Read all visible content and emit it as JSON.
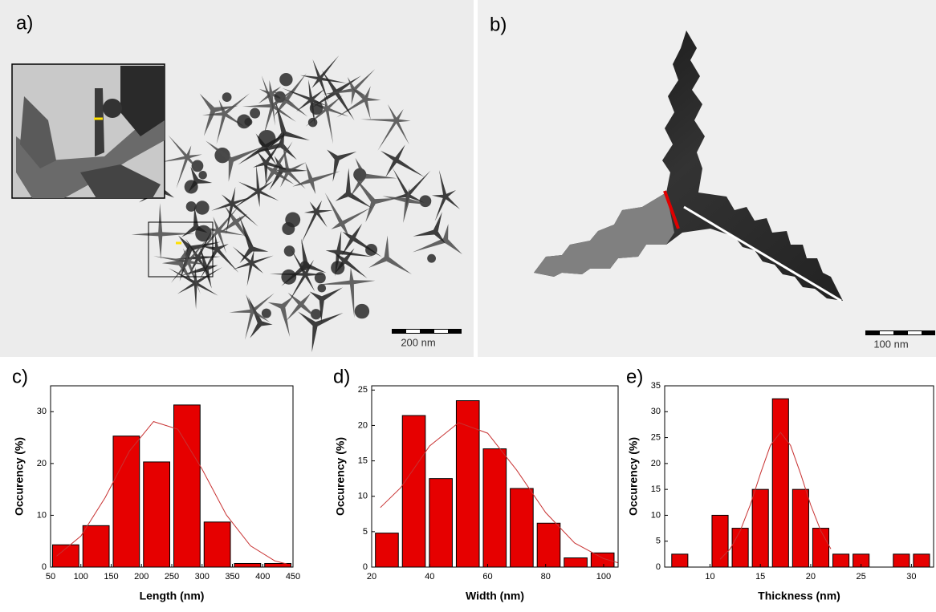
{
  "panels": [
    {
      "label": "a)",
      "scale_bar": "200 nm"
    },
    {
      "label": "b)",
      "scale_bar": "100 nm"
    }
  ],
  "chart_data": [
    {
      "type": "histogram",
      "panel_label": "c)",
      "xlabel": "Length (nm)",
      "ylabel": "Occurency (%)",
      "color": "#e60000",
      "bins": [
        50,
        100,
        150,
        200,
        250,
        300,
        350,
        400,
        450
      ],
      "values": [
        4.3,
        8,
        25.3,
        20.3,
        31.3,
        8.7,
        0.7,
        0.7
      ],
      "xlim": [
        50,
        450
      ],
      "ylim": [
        0,
        35
      ],
      "xticks": [
        50,
        100,
        150,
        200,
        250,
        300,
        350,
        400,
        450
      ],
      "yticks": [
        0,
        10,
        20,
        30
      ],
      "fit": {
        "color": "#c83232",
        "x": [
          60,
          100,
          140,
          180,
          220,
          260,
          300,
          340,
          380,
          420,
          440
        ],
        "values": [
          2.1,
          6.0,
          13.4,
          22.4,
          28.1,
          26.6,
          18.9,
          10.1,
          4.1,
          1.2,
          0.6
        ]
      }
    },
    {
      "type": "histogram",
      "panel_label": "d)",
      "xlabel": "Width (nm)",
      "ylabel": "Occurency (%)",
      "color": "#e60000",
      "bins": [
        20.6,
        29.9,
        39.2,
        48.5,
        57.8,
        67.1,
        76.4,
        85.7,
        95,
        104.3
      ],
      "values": [
        4.8,
        21.4,
        12.5,
        23.5,
        16.7,
        11.1,
        6.2,
        1.3,
        2.0
      ],
      "xlim": [
        20,
        105
      ],
      "ylim": [
        0,
        25.6
      ],
      "xticks": [
        20,
        40,
        60,
        80,
        100
      ],
      "yticks": [
        0,
        5,
        10,
        15,
        20,
        25
      ],
      "fit": {
        "color": "#c83232",
        "x": [
          23,
          30,
          40,
          50,
          60,
          70,
          80,
          90,
          100,
          105
        ],
        "values": [
          8.4,
          11.2,
          17.1,
          20.4,
          18.9,
          13.7,
          7.7,
          3.4,
          1.2,
          0.6
        ]
      }
    },
    {
      "type": "histogram",
      "panel_label": "e)",
      "xlabel": "Thickness (nm)",
      "ylabel": "Occurency (%)",
      "color": "#e60000",
      "bins": [
        6,
        8,
        10,
        12,
        14,
        16,
        18,
        20,
        22,
        24,
        26,
        28,
        30,
        32
      ],
      "values": [
        2.5,
        0,
        10,
        7.5,
        15,
        32.5,
        15,
        7.5,
        2.5,
        2.5,
        0,
        2.5,
        2.5
      ],
      "xlim": [
        5.5,
        32.2
      ],
      "ylim": [
        0,
        35
      ],
      "xticks": [
        10,
        15,
        20,
        25,
        30
      ],
      "yticks": [
        0,
        5,
        10,
        15,
        20,
        25,
        30,
        35
      ],
      "fit": {
        "color": "#c83232",
        "x": [
          11,
          12,
          13,
          14,
          15,
          16,
          17,
          18,
          19,
          20,
          21,
          22
        ],
        "values": [
          1.5,
          3.5,
          7,
          12,
          18,
          23.5,
          26,
          23.5,
          18,
          12,
          7,
          3.5
        ]
      }
    }
  ]
}
